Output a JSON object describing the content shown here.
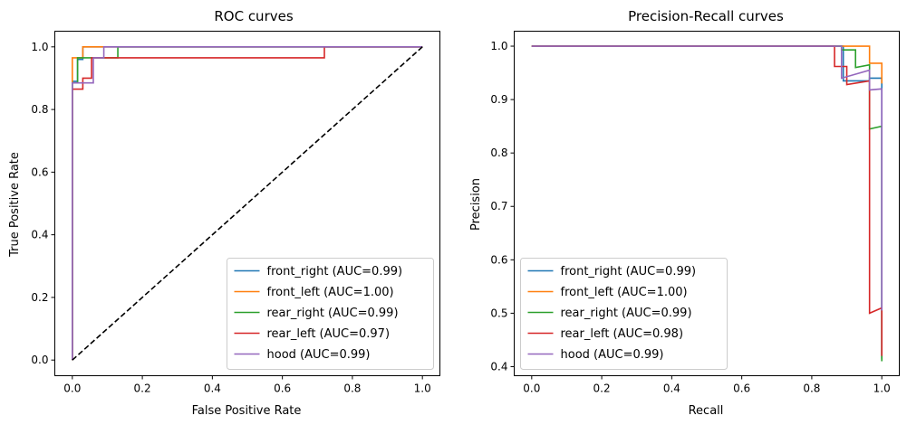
{
  "chart_data": [
    {
      "type": "line",
      "title": "ROC curves",
      "xlabel": "False Positive Rate",
      "ylabel": "True Positive Rate",
      "xlim": [
        -0.05,
        1.05
      ],
      "ylim": [
        -0.05,
        1.05
      ],
      "xticks": [
        "0.0",
        "0.2",
        "0.4",
        "0.6",
        "0.8",
        "1.0"
      ],
      "yticks": [
        "0.0",
        "0.2",
        "0.4",
        "0.6",
        "0.8",
        "1.0"
      ],
      "legend_position": "lower right",
      "series": [
        {
          "name": "front_right (AUC=0.99)",
          "color": "#1f77b4",
          "x": [
            0,
            0,
            0.015,
            0.015,
            0.03,
            0.03,
            0.06,
            0.06,
            1
          ],
          "y": [
            0,
            0.89,
            0.89,
            0.96,
            0.96,
            1.0,
            1.0,
            1.0,
            1.0
          ]
        },
        {
          "name": "front_left (AUC=1.00)",
          "color": "#ff7f0e",
          "x": [
            0,
            0,
            0.03,
            0.03,
            1
          ],
          "y": [
            0,
            0.965,
            0.965,
            1.0,
            1.0
          ]
        },
        {
          "name": "rear_right (AUC=0.99)",
          "color": "#2ca02c",
          "x": [
            0,
            0,
            0.015,
            0.015,
            0.06,
            0.06,
            0.13,
            0.13,
            1
          ],
          "y": [
            0,
            0.885,
            0.885,
            0.965,
            0.965,
            0.965,
            0.965,
            1.0,
            1.0
          ]
        },
        {
          "name": "rear_left (AUC=0.97)",
          "color": "#d62728",
          "x": [
            0,
            0,
            0.03,
            0.03,
            0.055,
            0.055,
            0.72,
            0.72,
            1
          ],
          "y": [
            0,
            0.865,
            0.865,
            0.9,
            0.9,
            0.965,
            0.965,
            1.0,
            1.0
          ]
        },
        {
          "name": "hood (AUC=0.99)",
          "color": "#9467bd",
          "x": [
            0,
            0,
            0.025,
            0.025,
            0.06,
            0.06,
            0.09,
            0.09,
            1
          ],
          "y": [
            0,
            0.885,
            0.885,
            0.885,
            0.885,
            0.965,
            0.965,
            1.0,
            1.0
          ]
        },
        {
          "name": "",
          "color": "#000000",
          "dashed": true,
          "x": [
            0,
            1
          ],
          "y": [
            0,
            1
          ]
        }
      ]
    },
    {
      "type": "line",
      "title": "Precision-Recall curves",
      "xlabel": "Recall",
      "ylabel": "Precision",
      "xlim": [
        -0.05,
        1.05
      ],
      "ylim": [
        0.383,
        1.028
      ],
      "xticks": [
        "0.0",
        "0.2",
        "0.4",
        "0.6",
        "0.8",
        "1.0"
      ],
      "yticks": [
        "0.4",
        "0.5",
        "0.6",
        "0.7",
        "0.8",
        "0.9",
        "1.0"
      ],
      "legend_position": "lower left",
      "series": [
        {
          "name": "front_right (AUC=0.99)",
          "color": "#1f77b4",
          "x": [
            0,
            0.89,
            0.89,
            0.965,
            0.965,
            1.0,
            1.0
          ],
          "y": [
            1.0,
            1.0,
            0.935,
            0.935,
            0.94,
            0.94,
            0.415
          ]
        },
        {
          "name": "front_left (AUC=1.00)",
          "color": "#ff7f0e",
          "x": [
            0,
            0.965,
            0.965,
            1.0,
            1.0
          ],
          "y": [
            1.0,
            1.0,
            0.968,
            0.968,
            0.93
          ]
        },
        {
          "name": "rear_right (AUC=0.99)",
          "color": "#2ca02c",
          "x": [
            0,
            0.885,
            0.885,
            0.925,
            0.925,
            0.965,
            0.965,
            1.0,
            1.0
          ],
          "y": [
            1.0,
            1.0,
            0.993,
            0.993,
            0.96,
            0.965,
            0.845,
            0.85,
            0.41
          ]
        },
        {
          "name": "rear_left (AUC=0.98)",
          "color": "#d62728",
          "x": [
            0,
            0.865,
            0.865,
            0.9,
            0.9,
            0.965,
            0.965,
            1.0,
            1.0
          ],
          "y": [
            1.0,
            1.0,
            0.962,
            0.962,
            0.928,
            0.935,
            0.5,
            0.51,
            0.42
          ]
        },
        {
          "name": "hood (AUC=0.99)",
          "color": "#9467bd",
          "x": [
            0,
            0.885,
            0.885,
            0.965,
            0.965,
            1.0,
            1.0
          ],
          "y": [
            1.0,
            1.0,
            0.94,
            0.955,
            0.918,
            0.92,
            0.505
          ]
        }
      ]
    }
  ]
}
